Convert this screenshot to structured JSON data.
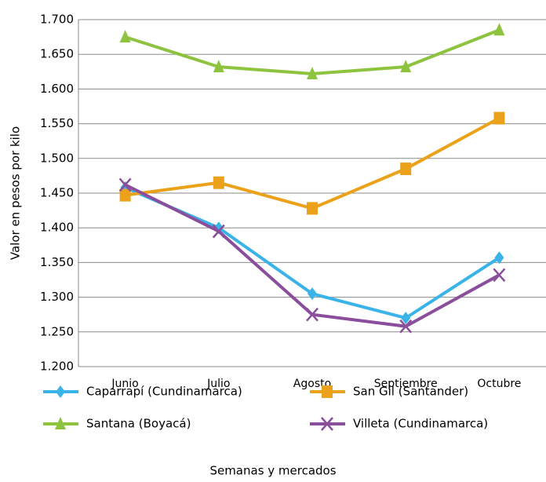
{
  "chart_data": {
    "type": "line",
    "y_label": "Valor en pesos por kilo",
    "x_label": "Semanas y mercados",
    "categories": [
      "Junio",
      "Julio",
      "Agosto",
      "Septiembre",
      "Octubre"
    ],
    "series": [
      {
        "name": "Caparrapí (Cundinamarca)",
        "color": "#3ab3e8",
        "marker": "diamond",
        "values": [
          1458,
          1400,
          1305,
          1270,
          1357
        ]
      },
      {
        "name": "San Gil (Santander)",
        "color": "#eba21a",
        "marker": "square",
        "values": [
          1447,
          1465,
          1428,
          1485,
          1558
        ]
      },
      {
        "name": "Santana (Boyacá)",
        "color": "#8dc33f",
        "marker": "triangle",
        "values": [
          1675,
          1632,
          1622,
          1632,
          1685
        ]
      },
      {
        "name": "Villeta (Cundinamarca)",
        "color": "#8a4e9c",
        "marker": "x",
        "values": [
          1462,
          1395,
          1275,
          1258,
          1332
        ]
      }
    ],
    "ylim": [
      1200,
      1700
    ],
    "yticks": [
      {
        "value": 1200,
        "label": "1.200"
      },
      {
        "value": 1250,
        "label": "1.250"
      },
      {
        "value": 1300,
        "label": "1.300"
      },
      {
        "value": 1350,
        "label": "1.350"
      },
      {
        "value": 1400,
        "label": "1.400"
      },
      {
        "value": 1450,
        "label": "1.450"
      },
      {
        "value": 1500,
        "label": "1.500"
      },
      {
        "value": 1550,
        "label": "1.550"
      },
      {
        "value": 1600,
        "label": "1.600"
      },
      {
        "value": 1650,
        "label": "1.650"
      },
      {
        "value": 1700,
        "label": "1.700"
      }
    ],
    "grid": true,
    "legend": "bottom"
  }
}
